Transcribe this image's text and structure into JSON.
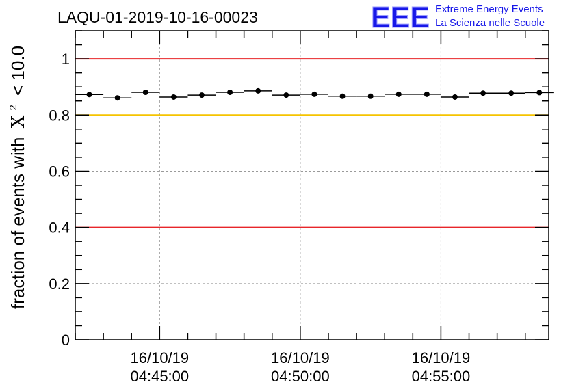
{
  "chart_data": {
    "type": "scatter",
    "title": "LAQU-01-2019-10-16-00023",
    "ylabel": "fraction of events with",
    "ylabel_chi": "X",
    "ylabel_sup": "2",
    "ylabel_tail": "< 10.0",
    "xlabel": "",
    "xlim_min": [
      0,
      50.5
    ],
    "ylim": [
      0,
      1.1
    ],
    "y_ticks": [
      0,
      0.2,
      0.4,
      0.6,
      0.8,
      1
    ],
    "y_tick_labels": [
      "0",
      "0.2",
      "0.4",
      "0.6",
      "0.8",
      "1"
    ],
    "x_major_ticks_min": [
      9,
      24,
      39
    ],
    "x_minor_step_min": 3,
    "x_tick_labels": [
      {
        "date": "16/10/19",
        "time": "04:45:00"
      },
      {
        "date": "16/10/19",
        "time": "04:50:00"
      },
      {
        "date": "16/10/19",
        "time": "04:55:00"
      }
    ],
    "grid": true,
    "bin_width_min": 3,
    "series": [
      {
        "name": "fraction",
        "x_min": [
          1.5,
          4.5,
          7.5,
          10.5,
          13.5,
          16.5,
          19.5,
          22.5,
          25.5,
          28.5,
          31.5,
          34.5,
          37.5,
          40.5,
          43.5,
          46.5,
          49.5
        ],
        "values": [
          0.873,
          0.861,
          0.881,
          0.864,
          0.871,
          0.881,
          0.886,
          0.871,
          0.874,
          0.867,
          0.867,
          0.874,
          0.874,
          0.864,
          0.878,
          0.878,
          0.88
        ]
      }
    ],
    "reference_lines": [
      {
        "y": 1.0,
        "color": "#e8262a"
      },
      {
        "y": 0.8,
        "color": "#f5c400"
      },
      {
        "y": 0.4,
        "color": "#e8262a"
      }
    ]
  },
  "logo": {
    "text": "EEE",
    "line1": "Extreme Energy Events",
    "line2": "La Scienza nelle Scuole",
    "color": "#1818e8"
  }
}
